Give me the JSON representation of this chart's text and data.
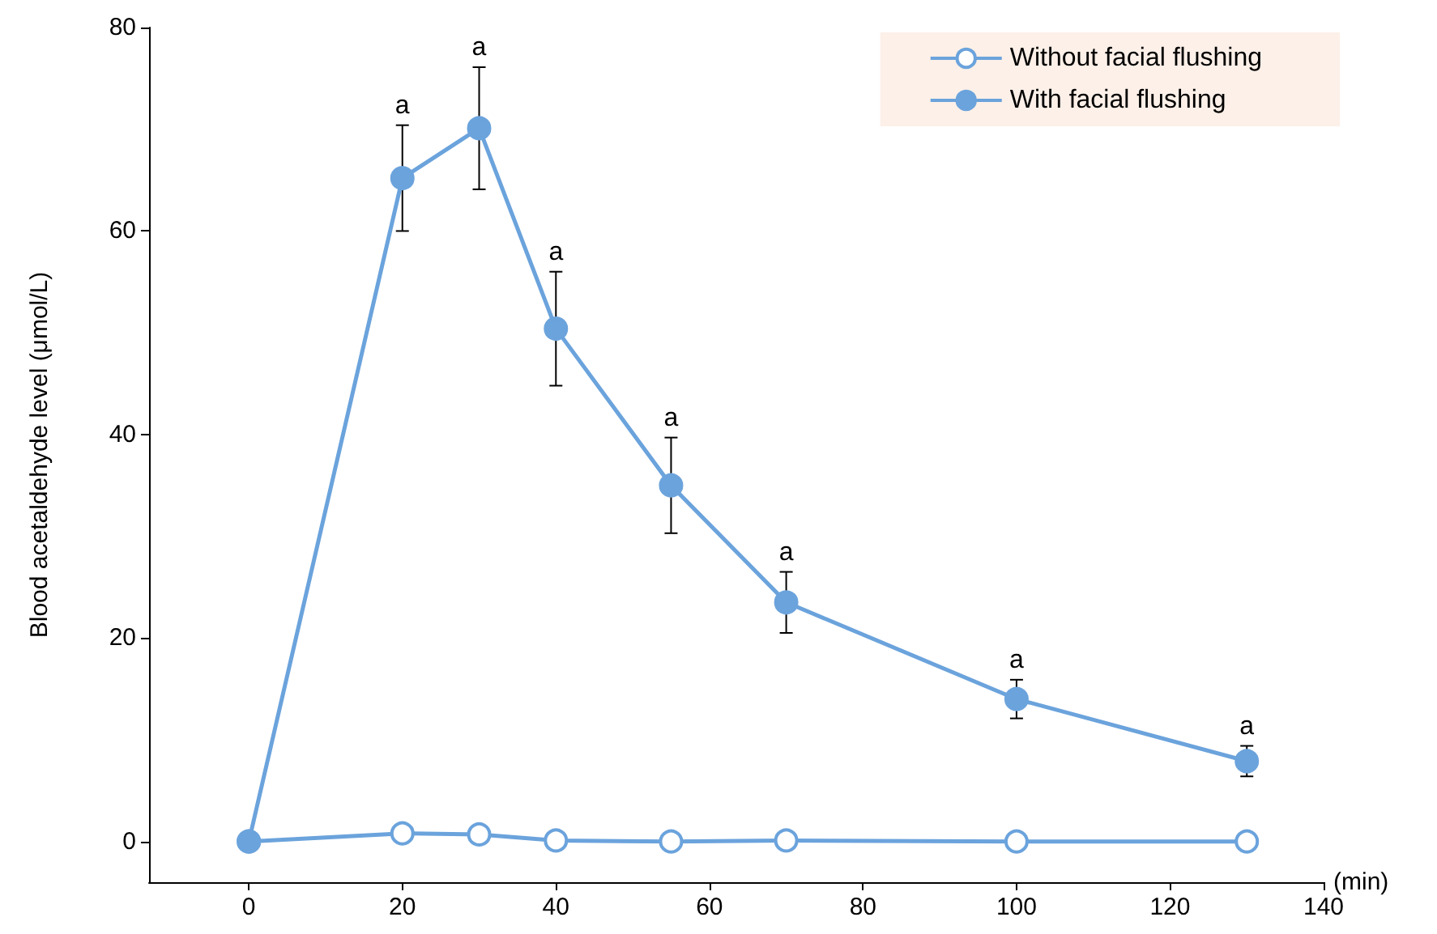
{
  "chart_data": {
    "type": "line",
    "xlabel": "(min)",
    "ylabel": "Blood acetaldehyde level (μmol/L)",
    "x": [
      0,
      20,
      30,
      40,
      55,
      70,
      100,
      130
    ],
    "series": [
      {
        "name": "Without facial flushing",
        "color": "#6ba3dc",
        "values": [
          0,
          0.8,
          0.7,
          0.1,
          0,
          0.1,
          0,
          0
        ]
      },
      {
        "name": "With facial flushing",
        "color": "#6ba3dc",
        "values": [
          0,
          65.2,
          70.1,
          50.4,
          35.0,
          23.5,
          14.0,
          7.9
        ],
        "errors": [
          null,
          5.2,
          6,
          5.6,
          4.7,
          3,
          1.9,
          1.5
        ]
      }
    ],
    "xlim": [
      -13,
      140
    ],
    "xticks": [
      0,
      20,
      40,
      60,
      80,
      100,
      120,
      140
    ],
    "ylim": [
      -4,
      80
    ],
    "yticks": [
      0,
      20,
      40,
      60,
      80
    ],
    "annotations": [
      {
        "text": "a",
        "x": 20,
        "y": 70.4
      },
      {
        "text": "a",
        "x": 30,
        "y": 76.1
      },
      {
        "text": "a",
        "x": 40,
        "y": 56
      },
      {
        "text": "a",
        "x": 55,
        "y": 39.7
      },
      {
        "text": "a",
        "x": 70,
        "y": 26.5
      },
      {
        "text": "a",
        "x": 100,
        "y": 15.9
      },
      {
        "text": "a",
        "x": 130,
        "y": 9.4
      }
    ],
    "grid": false,
    "legend": "top right",
    "marker": "circle",
    "line_style": "solid"
  }
}
